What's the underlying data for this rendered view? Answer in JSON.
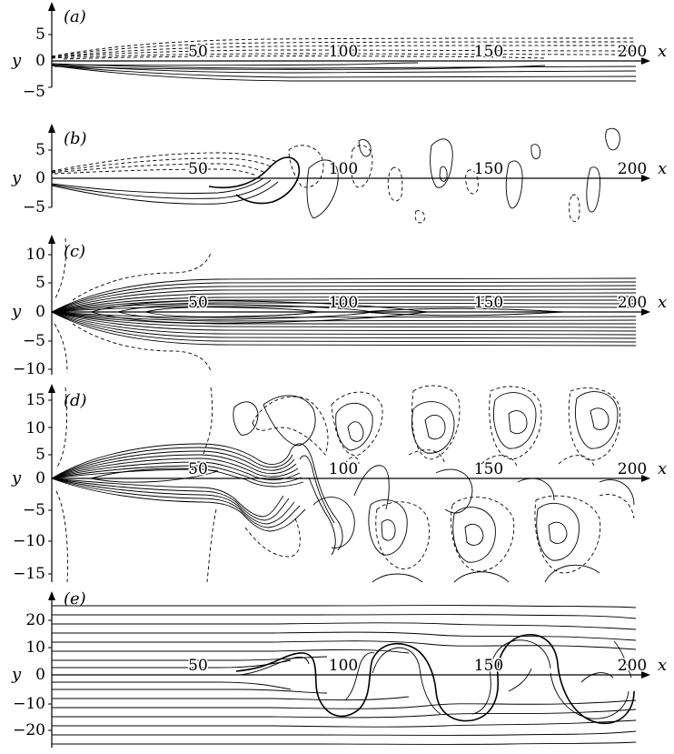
{
  "figure": {
    "panels": [
      {
        "label": "(a)",
        "x_axis_label": "x",
        "y_axis_label": "y",
        "x_ticks": [
          "50",
          "100",
          "150",
          "200"
        ],
        "y_ticks": [
          "5",
          "0",
          "−5"
        ]
      },
      {
        "label": "(b)",
        "x_axis_label": "x",
        "y_axis_label": "y",
        "x_ticks": [
          "50",
          "100",
          "150",
          "200"
        ],
        "y_ticks": [
          "5",
          "0",
          "−5"
        ]
      },
      {
        "label": "(c)",
        "x_axis_label": "x",
        "y_axis_label": "y",
        "x_ticks": [
          "50",
          "100",
          "150",
          "200"
        ],
        "y_ticks": [
          "10",
          "5",
          "0",
          "−5",
          "−10"
        ]
      },
      {
        "label": "(d)",
        "x_axis_label": "x",
        "y_axis_label": "y",
        "x_ticks": [
          "50",
          "100",
          "150",
          "200"
        ],
        "y_ticks": [
          "15",
          "10",
          "5",
          "0",
          "−5",
          "−10",
          "−15"
        ]
      },
      {
        "label": "(e)",
        "x_axis_label": "x",
        "y_axis_label": "y",
        "x_ticks": [
          "50",
          "100",
          "150",
          "200"
        ],
        "y_ticks": [
          "20",
          "10",
          "0",
          "−10",
          "−20"
        ]
      }
    ]
  }
}
